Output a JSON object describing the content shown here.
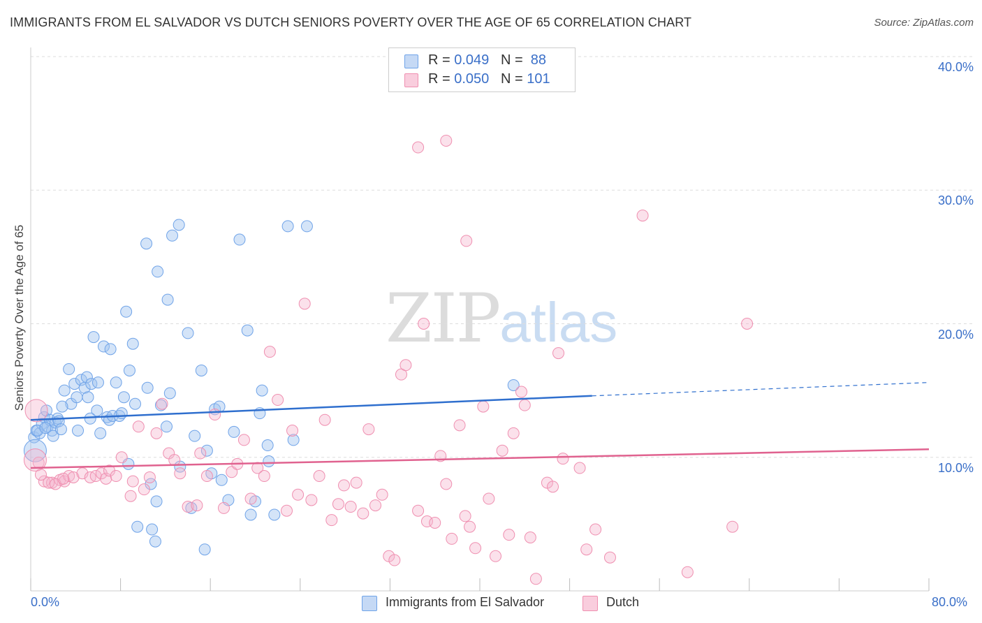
{
  "header": {
    "title": "IMMIGRANTS FROM EL SALVADOR VS DUTCH SENIORS POVERTY OVER THE AGE OF 65 CORRELATION CHART",
    "source": "Source: ZipAtlas.com"
  },
  "watermark": {
    "zip": "ZIP",
    "atlas": "atlas"
  },
  "legend": {
    "rows": [
      {
        "r_label": "R = ",
        "r_value": "0.049",
        "n_label": "N = ",
        "n_value": "88",
        "color": "#6fa3e8"
      },
      {
        "r_label": "R = ",
        "r_value": "0.050",
        "n_label": "N = ",
        "n_value": "101",
        "color": "#ef8fb0"
      }
    ]
  },
  "chart_data": {
    "type": "scatter",
    "title": "IMMIGRANTS FROM EL SALVADOR VS DUTCH SENIORS POVERTY OVER THE AGE OF 65 CORRELATION CHART",
    "xlabel": "",
    "ylabel": "Seniors Poverty Over the Age of 65",
    "xlim": [
      0,
      80
    ],
    "ylim": [
      0,
      42
    ],
    "x_tick_labels": [
      "0.0%",
      "80.0%"
    ],
    "y_tick_labels": [
      "10.0%",
      "20.0%",
      "30.0%",
      "40.0%"
    ],
    "y_ticks": [
      10,
      20,
      30,
      40
    ],
    "grid": true,
    "legend_position": "top-center",
    "series": [
      {
        "name": "Immigrants from El Salvador",
        "color": "#6fa3e8",
        "trend": {
          "x0": 0,
          "y0": 12.8,
          "x1": 50,
          "y1": 14.6,
          "dash_to_x": 80,
          "dash_to_y": 15.6
        },
        "points": [
          [
            0.3,
            11.5
          ],
          [
            0.5,
            12.0
          ],
          [
            0.8,
            11.8
          ],
          [
            1.0,
            12.5
          ],
          [
            1.2,
            13.0
          ],
          [
            1.4,
            13.5
          ],
          [
            1.5,
            12.3
          ],
          [
            1.7,
            12.8
          ],
          [
            1.9,
            12.0
          ],
          [
            2.0,
            11.6
          ],
          [
            2.2,
            12.6
          ],
          [
            2.4,
            12.9
          ],
          [
            2.5,
            12.7
          ],
          [
            2.7,
            12.1
          ],
          [
            3.0,
            15.0
          ],
          [
            3.4,
            16.6
          ],
          [
            3.6,
            14.0
          ],
          [
            3.9,
            15.5
          ],
          [
            4.1,
            14.5
          ],
          [
            4.2,
            12.0
          ],
          [
            4.5,
            15.8
          ],
          [
            4.8,
            15.2
          ],
          [
            5.0,
            16.0
          ],
          [
            5.1,
            14.5
          ],
          [
            5.4,
            15.5
          ],
          [
            5.6,
            19.0
          ],
          [
            5.9,
            13.5
          ],
          [
            6.0,
            15.6
          ],
          [
            6.2,
            11.8
          ],
          [
            6.5,
            18.3
          ],
          [
            6.8,
            13.0
          ],
          [
            7.0,
            12.8
          ],
          [
            7.1,
            18.1
          ],
          [
            7.3,
            13.1
          ],
          [
            7.6,
            15.6
          ],
          [
            7.9,
            13.1
          ],
          [
            8.3,
            14.5
          ],
          [
            8.5,
            20.9
          ],
          [
            8.7,
            9.5
          ],
          [
            8.8,
            16.5
          ],
          [
            9.1,
            18.5
          ],
          [
            9.3,
            14.0
          ],
          [
            9.5,
            4.8
          ],
          [
            10.4,
            15.2
          ],
          [
            10.7,
            8.0
          ],
          [
            10.8,
            4.6
          ],
          [
            11.1,
            3.7
          ],
          [
            11.2,
            6.7
          ],
          [
            11.6,
            13.9
          ],
          [
            12.1,
            12.3
          ],
          [
            12.4,
            14.8
          ],
          [
            13.3,
            9.3
          ],
          [
            14.0,
            19.3
          ],
          [
            14.3,
            6.2
          ],
          [
            14.6,
            11.6
          ],
          [
            15.2,
            16.5
          ],
          [
            15.5,
            3.1
          ],
          [
            15.7,
            10.5
          ],
          [
            16.1,
            8.8
          ],
          [
            16.4,
            13.6
          ],
          [
            16.8,
            13.8
          ],
          [
            17.0,
            8.3
          ],
          [
            17.6,
            6.8
          ],
          [
            18.1,
            11.9
          ],
          [
            18.6,
            26.3
          ],
          [
            19.3,
            19.5
          ],
          [
            19.6,
            5.7
          ],
          [
            20.0,
            6.7
          ],
          [
            20.4,
            13.3
          ],
          [
            20.6,
            15.0
          ],
          [
            21.1,
            10.9
          ],
          [
            21.2,
            9.7
          ],
          [
            21.7,
            5.7
          ],
          [
            22.9,
            27.3
          ],
          [
            23.4,
            11.3
          ],
          [
            24.6,
            27.3
          ],
          [
            10.3,
            26.0
          ],
          [
            11.3,
            23.9
          ],
          [
            12.6,
            26.6
          ],
          [
            13.2,
            27.4
          ],
          [
            12.2,
            21.8
          ],
          [
            0.6,
            12.0
          ],
          [
            1.3,
            12.2
          ],
          [
            2.8,
            13.8
          ],
          [
            5.3,
            12.9
          ],
          [
            8.1,
            13.3
          ],
          [
            43.0,
            15.4
          ],
          [
            0.4,
            10.5
          ]
        ]
      },
      {
        "name": "Dutch",
        "color": "#ef8fb0",
        "trend": {
          "x0": 0,
          "y0": 9.2,
          "x1": 80,
          "y1": 10.6
        },
        "points": [
          [
            0.5,
            13.5
          ],
          [
            0.7,
            9.6
          ],
          [
            1.2,
            8.2
          ],
          [
            1.9,
            8.1
          ],
          [
            2.6,
            8.3
          ],
          [
            3.0,
            8.2
          ],
          [
            3.4,
            8.6
          ],
          [
            3.8,
            8.5
          ],
          [
            4.6,
            8.8
          ],
          [
            5.3,
            8.5
          ],
          [
            5.8,
            8.6
          ],
          [
            6.3,
            8.8
          ],
          [
            6.7,
            8.4
          ],
          [
            7.0,
            9.0
          ],
          [
            7.6,
            8.6
          ],
          [
            8.1,
            10.0
          ],
          [
            8.9,
            7.1
          ],
          [
            9.1,
            8.2
          ],
          [
            9.6,
            12.3
          ],
          [
            10.1,
            7.6
          ],
          [
            10.6,
            8.5
          ],
          [
            11.2,
            11.8
          ],
          [
            11.7,
            14.0
          ],
          [
            12.3,
            10.3
          ],
          [
            12.8,
            9.8
          ],
          [
            13.3,
            8.8
          ],
          [
            14.0,
            6.3
          ],
          [
            14.8,
            6.4
          ],
          [
            15.1,
            10.3
          ],
          [
            15.7,
            8.6
          ],
          [
            16.4,
            13.2
          ],
          [
            17.2,
            6.2
          ],
          [
            17.9,
            8.9
          ],
          [
            18.4,
            9.5
          ],
          [
            19.0,
            11.3
          ],
          [
            19.6,
            6.9
          ],
          [
            20.2,
            9.2
          ],
          [
            20.8,
            8.6
          ],
          [
            21.3,
            17.9
          ],
          [
            22.0,
            14.3
          ],
          [
            22.8,
            6.0
          ],
          [
            23.3,
            12.0
          ],
          [
            23.8,
            7.2
          ],
          [
            24.4,
            21.5
          ],
          [
            25.0,
            6.8
          ],
          [
            25.7,
            8.6
          ],
          [
            26.2,
            12.8
          ],
          [
            26.8,
            5.3
          ],
          [
            27.4,
            6.5
          ],
          [
            27.9,
            7.9
          ],
          [
            28.5,
            6.3
          ],
          [
            29.0,
            8.1
          ],
          [
            29.6,
            5.8
          ],
          [
            30.1,
            12.1
          ],
          [
            30.7,
            6.4
          ],
          [
            31.3,
            7.2
          ],
          [
            31.9,
            2.6
          ],
          [
            32.4,
            2.3
          ],
          [
            33.0,
            16.2
          ],
          [
            33.4,
            16.9
          ],
          [
            34.5,
            6.0
          ],
          [
            35.0,
            20.0
          ],
          [
            35.3,
            5.2
          ],
          [
            36.0,
            5.1
          ],
          [
            36.5,
            10.1
          ],
          [
            37.0,
            8.0
          ],
          [
            37.5,
            3.9
          ],
          [
            38.2,
            12.4
          ],
          [
            38.7,
            5.6
          ],
          [
            39.1,
            4.8
          ],
          [
            39.6,
            3.2
          ],
          [
            40.3,
            13.8
          ],
          [
            40.8,
            6.9
          ],
          [
            41.4,
            2.6
          ],
          [
            42.0,
            10.5
          ],
          [
            42.6,
            4.2
          ],
          [
            43.0,
            11.8
          ],
          [
            43.7,
            14.9
          ],
          [
            44.0,
            13.9
          ],
          [
            44.5,
            4.0
          ],
          [
            45.0,
            0.9
          ],
          [
            46.0,
            8.1
          ],
          [
            46.5,
            7.8
          ],
          [
            47.0,
            17.8
          ],
          [
            47.4,
            9.9
          ],
          [
            48.9,
            9.2
          ],
          [
            49.5,
            3.1
          ],
          [
            50.3,
            4.6
          ],
          [
            51.6,
            2.5
          ],
          [
            54.5,
            28.1
          ],
          [
            58.5,
            1.4
          ],
          [
            62.5,
            4.8
          ],
          [
            63.8,
            20.0
          ],
          [
            34.5,
            33.2
          ],
          [
            37.0,
            33.7
          ],
          [
            38.8,
            26.2
          ],
          [
            0.4,
            9.8
          ],
          [
            0.9,
            8.7
          ],
          [
            1.6,
            8.1
          ],
          [
            2.2,
            8.0
          ],
          [
            2.9,
            8.4
          ]
        ]
      }
    ]
  },
  "bottom_legend": [
    {
      "label": "Immigrants from El Salvador",
      "color": "#6fa3e8"
    },
    {
      "label": "Dutch",
      "color": "#ef8fb0"
    }
  ]
}
